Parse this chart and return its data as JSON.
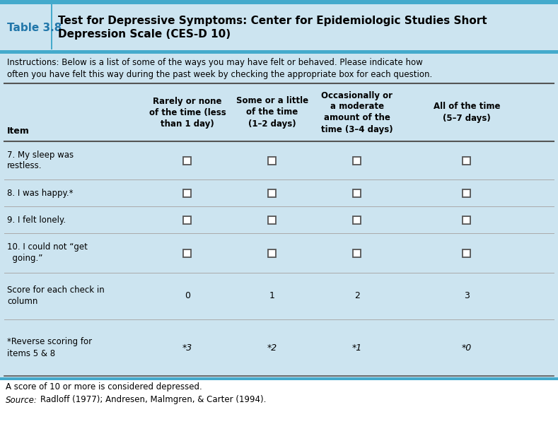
{
  "title_label": "Table 3.8",
  "title_text": "Test for Depressive Symptoms: Center for Epidemiologic Studies Short\nDepression Scale (CES-D 10)",
  "instructions": "Instructions: Below is a list of some of the ways you may have felt or behaved. Please indicate how\noften you have felt this way during the past week by checking the appropriate box for each question.",
  "col_headers": [
    "Item",
    "Rarely or none\nof the time (less\nthan 1 day)",
    "Some or a little\nof the time\n(1–2 days)",
    "Occasionally or\na moderate\namount of the\ntime (3–4 days)",
    "All of the time\n(5–7 days)"
  ],
  "rows": [
    {
      "item": "7. My sleep was\nrestless.",
      "has_checkbox": true
    },
    {
      "item": "8. I was happy.*",
      "has_checkbox": true
    },
    {
      "item": "9. I felt lonely.",
      "has_checkbox": true
    },
    {
      "item": "10. I could not “get\n  going.”",
      "has_checkbox": true
    },
    {
      "item": "Score for each check in\ncolumn",
      "values": [
        "0",
        "1",
        "2",
        "3"
      ]
    },
    {
      "item": "*Reverse scoring for\nitems 5 & 8",
      "values": [
        "*3",
        "*2",
        "*1",
        "*0"
      ]
    }
  ],
  "footer_lines": [
    "A score of 10 or more is considered depressed.",
    "Radloff (1977); Andresen, Malmgren, & Carter (1994)."
  ],
  "bg_color": "#cce4f0",
  "title_label_color": "#2277aa",
  "border_color": "#44aacc",
  "table_line_color": "#888888",
  "checkbox_color": "#555555"
}
